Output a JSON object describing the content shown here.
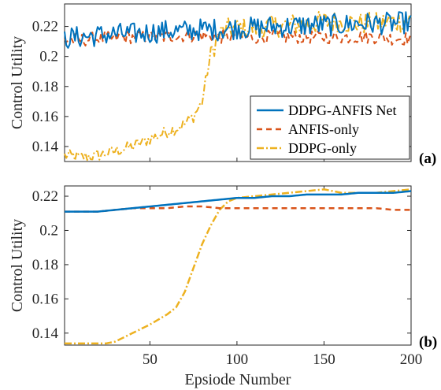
{
  "chart_data": [
    {
      "panel_label": "(a)",
      "type": "line",
      "xlabel": "",
      "ylabel": "Control Utility",
      "xlim": [
        1,
        200
      ],
      "ylim": [
        0.13,
        0.235
      ],
      "yticks": [
        0.14,
        0.16,
        0.18,
        0.2,
        0.22
      ],
      "ytick_labels": [
        "0.14",
        "0.16",
        "0.18",
        "0.2",
        "0.22"
      ],
      "grid": false,
      "legend_placement": "lower-right",
      "series": [
        {
          "name": "DDPG-ANFIS Net",
          "color": "#0072BD",
          "style": "solid",
          "x": [
            1,
            10,
            20,
            30,
            40,
            50,
            60,
            70,
            80,
            90,
            100,
            110,
            120,
            130,
            140,
            150,
            160,
            170,
            180,
            190,
            200
          ],
          "values": [
            0.212,
            0.213,
            0.214,
            0.215,
            0.215,
            0.216,
            0.217,
            0.217,
            0.218,
            0.218,
            0.219,
            0.219,
            0.22,
            0.22,
            0.221,
            0.221,
            0.221,
            0.222,
            0.222,
            0.222,
            0.223
          ]
        },
        {
          "name": "ANFIS-only",
          "color": "#D95319",
          "style": "dashed",
          "x": [
            1,
            10,
            20,
            30,
            40,
            50,
            60,
            70,
            80,
            90,
            100,
            110,
            120,
            130,
            140,
            150,
            160,
            170,
            180,
            190,
            200
          ],
          "values": [
            0.211,
            0.211,
            0.212,
            0.212,
            0.213,
            0.213,
            0.213,
            0.214,
            0.214,
            0.213,
            0.213,
            0.213,
            0.213,
            0.213,
            0.213,
            0.213,
            0.213,
            0.213,
            0.213,
            0.212,
            0.212
          ]
        },
        {
          "name": "DDPG-only",
          "color": "#EDB120",
          "style": "dashdot",
          "x": [
            1,
            10,
            20,
            30,
            40,
            50,
            60,
            65,
            70,
            75,
            80,
            83,
            86,
            90,
            95,
            100,
            110,
            120,
            130,
            140,
            150,
            160,
            170,
            180,
            190,
            200
          ],
          "values": [
            0.134,
            0.133,
            0.134,
            0.137,
            0.14,
            0.145,
            0.15,
            0.152,
            0.155,
            0.16,
            0.17,
            0.19,
            0.205,
            0.215,
            0.218,
            0.219,
            0.219,
            0.22,
            0.221,
            0.222,
            0.223,
            0.223,
            0.222,
            0.222,
            0.223,
            0.224
          ]
        }
      ]
    },
    {
      "panel_label": "(b)",
      "type": "line",
      "xlabel": "Epsiode Number",
      "ylabel": "Control Utility",
      "xlim": [
        1,
        200
      ],
      "ylim": [
        0.133,
        0.226
      ],
      "xticks": [
        50,
        100,
        150,
        200
      ],
      "xtick_labels": [
        "50",
        "100",
        "150",
        "200"
      ],
      "yticks": [
        0.14,
        0.16,
        0.18,
        0.2,
        0.22
      ],
      "ytick_labels": [
        "0.14",
        "0.16",
        "0.18",
        "0.2",
        "0.22"
      ],
      "grid": false,
      "series": [
        {
          "color": "#0072BD",
          "style": "solid",
          "x": [
            1,
            10,
            20,
            30,
            40,
            50,
            60,
            70,
            80,
            90,
            100,
            110,
            120,
            130,
            140,
            150,
            160,
            170,
            180,
            190,
            200
          ],
          "values": [
            0.211,
            0.211,
            0.211,
            0.212,
            0.213,
            0.214,
            0.215,
            0.216,
            0.217,
            0.218,
            0.219,
            0.219,
            0.22,
            0.22,
            0.221,
            0.221,
            0.221,
            0.222,
            0.222,
            0.222,
            0.223
          ]
        },
        {
          "color": "#D95319",
          "style": "dashed",
          "x": [
            1,
            10,
            20,
            30,
            40,
            50,
            60,
            70,
            80,
            90,
            100,
            110,
            120,
            130,
            140,
            150,
            160,
            170,
            180,
            190,
            200
          ],
          "values": [
            0.211,
            0.211,
            0.211,
            0.212,
            0.213,
            0.213,
            0.213,
            0.214,
            0.214,
            0.213,
            0.213,
            0.213,
            0.213,
            0.213,
            0.213,
            0.213,
            0.213,
            0.213,
            0.213,
            0.212,
            0.212
          ]
        },
        {
          "color": "#EDB120",
          "style": "dashdot",
          "x": [
            1,
            10,
            20,
            25,
            30,
            40,
            50,
            60,
            65,
            70,
            75,
            80,
            85,
            90,
            95,
            100,
            110,
            120,
            130,
            140,
            150,
            160,
            170,
            180,
            190,
            200
          ],
          "values": [
            0.134,
            0.134,
            0.134,
            0.134,
            0.135,
            0.14,
            0.145,
            0.151,
            0.155,
            0.164,
            0.178,
            0.192,
            0.203,
            0.212,
            0.217,
            0.219,
            0.22,
            0.221,
            0.222,
            0.223,
            0.224,
            0.222,
            0.222,
            0.222,
            0.223,
            0.224
          ]
        }
      ]
    }
  ]
}
